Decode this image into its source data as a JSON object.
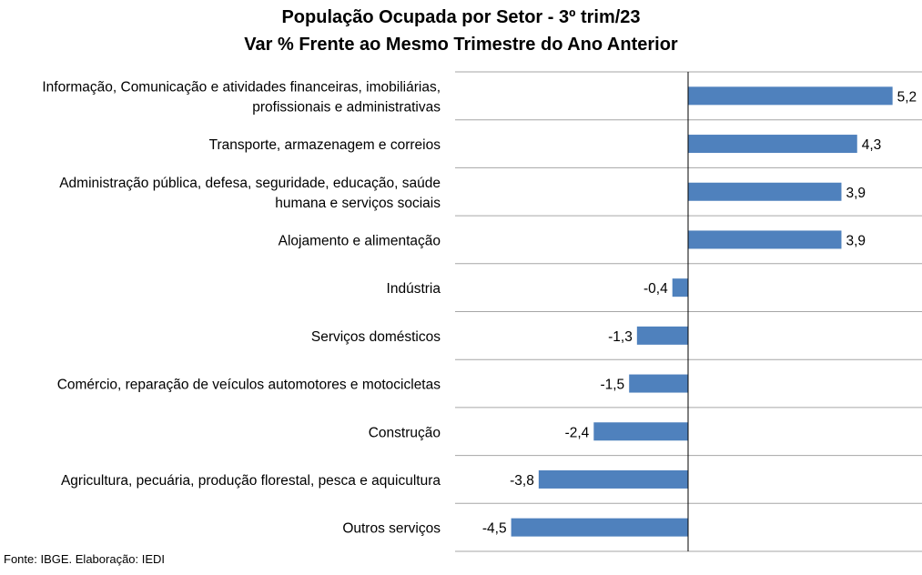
{
  "chart_data": {
    "type": "bar",
    "orientation": "horizontal",
    "title": "População Ocupada por Setor - 3º trim/23",
    "subtitle": "Var % Frente ao Mesmo Trimestre do Ano Anterior",
    "categories": [
      [
        "Informação, Comunicação e atividades financeiras, imobiliárias,",
        "profissionais e administrativas"
      ],
      [
        "Transporte, armazenagem e correios"
      ],
      [
        "Administração pública, defesa, seguridade, educação, saúde",
        "humana e serviços sociais"
      ],
      [
        "Alojamento e alimentação"
      ],
      [
        "Indústria"
      ],
      [
        "Serviços domésticos"
      ],
      [
        "Comércio, reparação de veículos automotores e motocicletas"
      ],
      [
        "Construção"
      ],
      [
        "Agricultura, pecuária, produção florestal, pesca e aquicultura"
      ],
      [
        "Outros serviços"
      ]
    ],
    "values": [
      5.2,
      4.3,
      3.9,
      3.9,
      -0.4,
      -1.3,
      -1.5,
      -2.4,
      -3.8,
      -4.5
    ],
    "value_labels": [
      "5,2",
      "4,3",
      "3,9",
      "3,9",
      "-0,4",
      "-1,3",
      "-1,5",
      "-2,4",
      "-3,8",
      "-4,5"
    ],
    "xlim": [
      -4.5,
      5.2
    ],
    "bar_color": "#4f81bd",
    "grid": "horizontal separators"
  },
  "source": "Fonte: IBGE. Elaboração: IEDI"
}
